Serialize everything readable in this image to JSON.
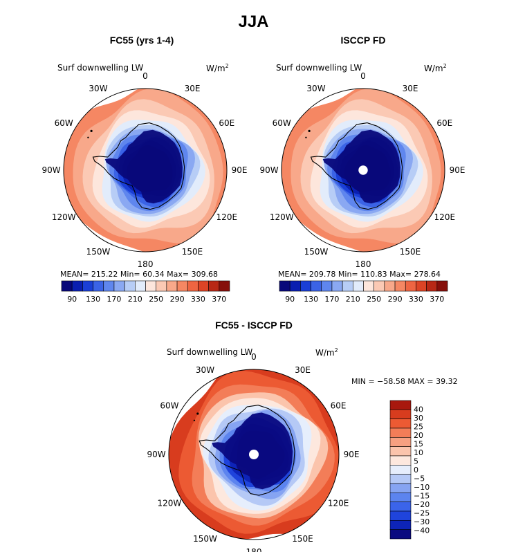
{
  "title": "JJA",
  "panels": [
    {
      "subtitle": "FC55 (yrs 1-4)",
      "field_label": "Surf downwelling LW",
      "units": "W/m",
      "units_sup": "2",
      "stats": "MEAN= 215.22   Min=  60.34   Max= 309.68",
      "colorbar_ticks": [
        "90",
        "130",
        "170",
        "210",
        "250",
        "290",
        "330",
        "370"
      ],
      "has_pole_hole": false
    },
    {
      "subtitle": "ISCCP FD",
      "field_label": "Surf downwelling LW",
      "units": "W/m",
      "units_sup": "2",
      "stats": "MEAN= 209.78   Min= 110.83   Max= 278.64",
      "colorbar_ticks": [
        "90",
        "130",
        "170",
        "210",
        "250",
        "290",
        "330",
        "370"
      ],
      "has_pole_hole": true
    }
  ],
  "diff_panel": {
    "subtitle": "FC55 - ISCCP FD",
    "field_label": "Surf downwelling LW",
    "units": "W/m",
    "units_sup": "2",
    "stats": "MIN = −58.58 MAX =  39.32",
    "colorbar_ticks": [
      "40",
      "30",
      "25",
      "20",
      "15",
      "10",
      "5",
      "0",
      "−5",
      "−10",
      "−15",
      "−20",
      "−25",
      "−30",
      "−40"
    ]
  },
  "longitude_labels": [
    "0",
    "30E",
    "60E",
    "90E",
    "120E",
    "150E",
    "180",
    "150W",
    "120W",
    "90W",
    "60W",
    "30W"
  ],
  "colors": {
    "abs_scale": [
      "#08087a",
      "#0a1fb0",
      "#1a3fd6",
      "#3b63e6",
      "#5f86ee",
      "#8aa8f2",
      "#b7cdf6",
      "#e2ecfb",
      "#fde6dc",
      "#fbc9b4",
      "#f8a88a",
      "#f58763",
      "#ee6542",
      "#dc4426",
      "#b82816",
      "#860f0b"
    ],
    "diff_scale": [
      "#0a0a80",
      "#0d24b8",
      "#1f44dc",
      "#3b64ea",
      "#5c84ef",
      "#86a4f2",
      "#b5c9f6",
      "#e6eefc",
      "#fde8de",
      "#fbc4ac",
      "#f7a081",
      "#f37d58",
      "#ec5a33",
      "#d83c1e",
      "#a8180e"
    ],
    "coastline": "#000000"
  }
}
